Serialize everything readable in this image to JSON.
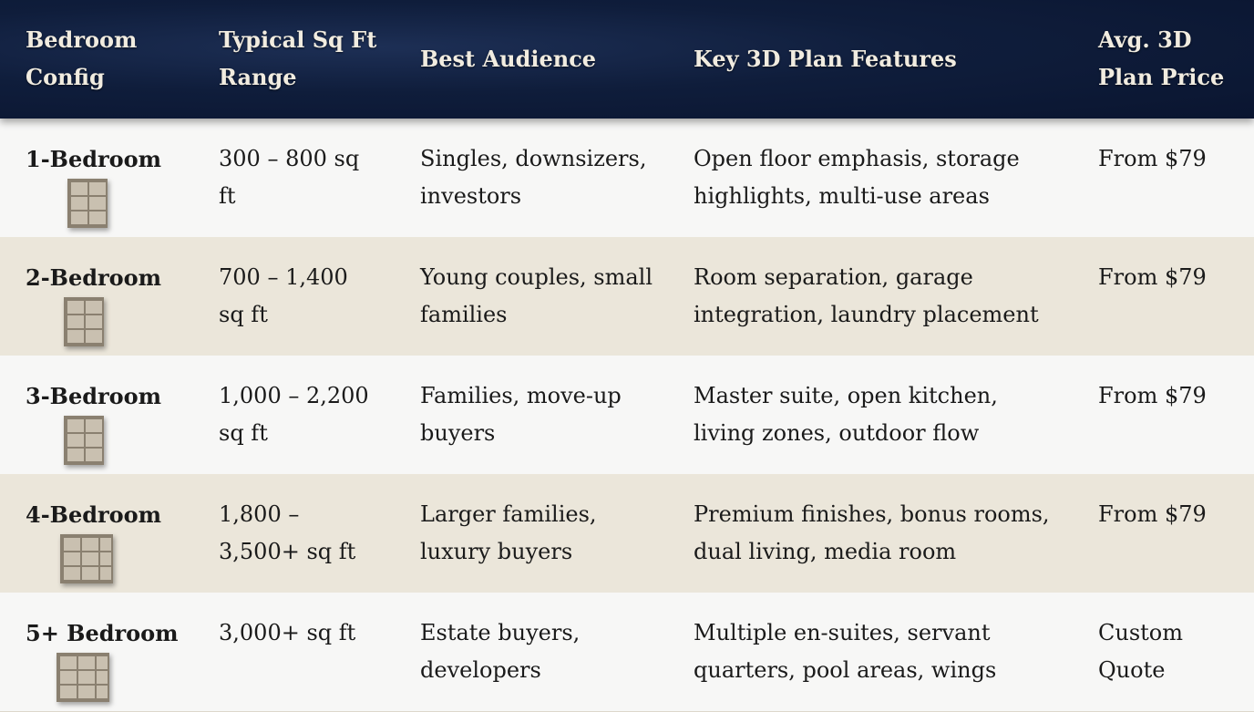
{
  "header": {
    "columns": [
      "Bedroom Config",
      "Typical Sq Ft Range",
      "Best Audience",
      "Key 3D Plan Features",
      "Avg. 3D Plan Price"
    ],
    "col0_lines": [
      "Bedroom",
      "Config"
    ],
    "col1_lines": [
      "Typical Sq Ft",
      "Range"
    ],
    "col4_lines": [
      "Avg. 3D Plan",
      "Price"
    ]
  },
  "rows": [
    {
      "config": "1-Bedroom",
      "sqft": "300 – 800 sq ft",
      "audience": "Singles, downsizers, investors",
      "features": "Open floor emphasis, storage highlights, multi-use areas",
      "price": "From $79",
      "thumbnail": "floor-plan-1-bedroom"
    },
    {
      "config": "2-Bedroom",
      "sqft": "700 – 1,400 sq ft",
      "audience": "Young couples, small families",
      "features": "Room separation, garage integration, laundry placement",
      "price": "From $79",
      "thumbnail": "floor-plan-2-bedroom"
    },
    {
      "config": "3-Bedroom",
      "sqft": "1,000 – 2,200 sq ft",
      "audience": "Families, move-up buyers",
      "features": "Master suite, open kitchen, living zones, outdoor flow",
      "price": "From $79",
      "thumbnail": "floor-plan-3-bedroom"
    },
    {
      "config": "4-Bedroom",
      "sqft": "1,800 – 3,500+ sq ft",
      "audience": "Larger families, luxury buyers",
      "features": "Premium finishes, bonus rooms, dual living, media room",
      "price": "From $79",
      "thumbnail": "floor-plan-4-bedroom"
    },
    {
      "config": "5+ Bedroom",
      "sqft": "3,000+ sq ft",
      "audience": "Estate buyers, developers",
      "features": "Multiple en-suites, servant quarters, pool areas, wings",
      "price": "Custom Quote",
      "thumbnail": "floor-plan-5-bedroom"
    }
  ],
  "colors": {
    "header_bg": "#0f1d3b",
    "header_text": "#f1ece0",
    "row_odd": "#f7f7f6",
    "row_even": "#ebe6da"
  }
}
